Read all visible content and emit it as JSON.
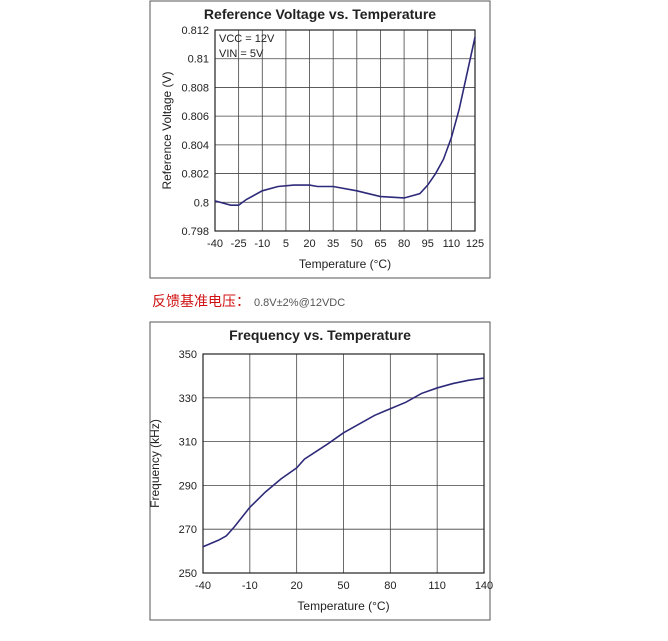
{
  "chart_data": [
    {
      "type": "line",
      "title": "Reference Voltage vs. Temperature",
      "xlabel": "Temperature (°C)",
      "ylabel": "Reference Voltage (V)",
      "annotations": [
        "VCC = 12V",
        "VIN = 5V"
      ],
      "xlim": [
        -40,
        125
      ],
      "xticks": [
        -40,
        -25,
        -10,
        5,
        20,
        35,
        50,
        65,
        80,
        95,
        110,
        125
      ],
      "ylim": [
        0.798,
        0.812
      ],
      "yticks": [
        0.798,
        0.8,
        0.802,
        0.804,
        0.806,
        0.808,
        0.81,
        0.812
      ],
      "grid": true,
      "series": [
        {
          "color": "#2e2a7a",
          "x": [
            -40,
            -30,
            -25,
            -20,
            -10,
            0,
            10,
            20,
            25,
            35,
            50,
            65,
            80,
            90,
            95,
            100,
            105,
            110,
            115,
            120,
            125
          ],
          "values": [
            0.8001,
            0.7998,
            0.7998,
            0.8002,
            0.8008,
            0.8011,
            0.8012,
            0.8012,
            0.8011,
            0.8011,
            0.8008,
            0.8004,
            0.8003,
            0.8006,
            0.8012,
            0.802,
            0.803,
            0.8045,
            0.8065,
            0.809,
            0.8115
          ]
        }
      ]
    },
    {
      "type": "line",
      "title": "Frequency vs. Temperature",
      "xlabel": "Temperature (°C)",
      "ylabel": "Frequency (kHz)",
      "xlim": [
        -40,
        140
      ],
      "xticks": [
        -40,
        -10,
        20,
        50,
        80,
        110,
        140
      ],
      "ylim": [
        250,
        350
      ],
      "yticks": [
        250,
        270,
        290,
        310,
        330,
        350
      ],
      "grid": true,
      "series": [
        {
          "color": "#2e2a7a",
          "x": [
            -40,
            -30,
            -25,
            -20,
            -10,
            0,
            10,
            20,
            25,
            40,
            50,
            60,
            70,
            80,
            90,
            100,
            110,
            120,
            130,
            140
          ],
          "values": [
            262,
            265,
            267,
            271,
            280,
            287,
            293,
            298,
            302,
            309,
            314,
            318,
            322,
            325,
            328,
            332,
            334.5,
            336.5,
            338,
            339
          ]
        }
      ]
    }
  ],
  "note": {
    "label": "反馈基准电压：",
    "value": "0.8V±2%@12VDC"
  }
}
